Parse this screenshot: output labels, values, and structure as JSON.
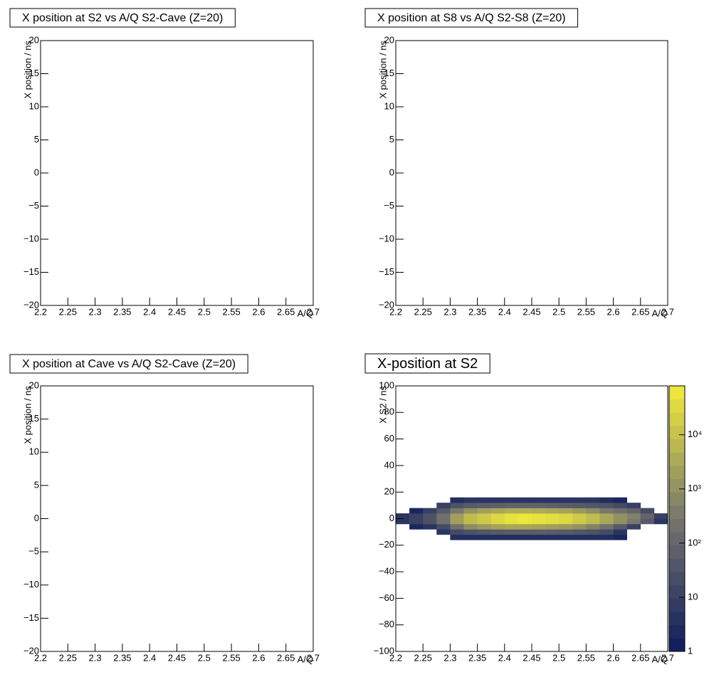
{
  "chart_data": [
    {
      "type": "hist2d",
      "title": "X position at S2 vs A/Q S2-Cave (Z=20)",
      "x_label": "A/Q",
      "y_label": "X position / ns",
      "xlim": [
        2.2,
        2.7
      ],
      "xticks": [
        2.2,
        2.25,
        2.3,
        2.35,
        2.4,
        2.45,
        2.5,
        2.55,
        2.6,
        2.65,
        2.7
      ],
      "ylim": [
        -20,
        20
      ],
      "yticks": [
        {
          "value": -20,
          "label": "−20"
        },
        {
          "value": -15,
          "label": "−15"
        },
        {
          "value": -10,
          "label": "−10"
        },
        {
          "value": -5,
          "label": "−5"
        },
        0,
        5,
        10,
        15,
        20
      ]
    },
    {
      "type": "hist2d",
      "title": "X position at S8 vs A/Q S2-S8 (Z=20)",
      "x_label": "A/Q",
      "y_label": "X position / ns",
      "xlim": [
        2.2,
        2.7
      ],
      "xticks": [
        2.2,
        2.25,
        2.3,
        2.35,
        2.4,
        2.45,
        2.5,
        2.55,
        2.6,
        2.65,
        2.7
      ],
      "ylim": [
        -20,
        20
      ],
      "yticks": [
        {
          "value": -20,
          "label": "−20"
        },
        {
          "value": -15,
          "label": "−15"
        },
        {
          "value": -10,
          "label": "−10"
        },
        {
          "value": -5,
          "label": "−5"
        },
        0,
        5,
        10,
        15,
        20
      ]
    },
    {
      "type": "hist2d",
      "title": "X position at Cave vs A/Q S2-Cave (Z=20)",
      "x_label": "A/Q",
      "y_label": "X position / ns",
      "xlim": [
        2.2,
        2.7
      ],
      "xticks": [
        2.2,
        2.25,
        2.3,
        2.35,
        2.4,
        2.45,
        2.5,
        2.55,
        2.6,
        2.65,
        2.7
      ],
      "ylim": [
        -20,
        20
      ],
      "yticks": [
        {
          "value": -20,
          "label": "−20"
        },
        {
          "value": -15,
          "label": "−15"
        },
        {
          "value": -10,
          "label": "−10"
        },
        {
          "value": -5,
          "label": "−5"
        },
        0,
        5,
        10,
        15,
        20
      ]
    },
    {
      "type": "hist2d",
      "title": "X-position at S2",
      "x_label": "A/Q",
      "y_label": "X S2 / ns",
      "xlim": [
        2.2,
        2.7
      ],
      "xticks": [
        2.2,
        2.25,
        2.3,
        2.35,
        2.4,
        2.45,
        2.5,
        2.55,
        2.6,
        2.65,
        2.7
      ],
      "ylim": [
        -100,
        100
      ],
      "yticks": [
        {
          "value": -100,
          "label": "−100"
        },
        {
          "value": -80,
          "label": "−80"
        },
        {
          "value": -60,
          "label": "−60"
        },
        {
          "value": -40,
          "label": "−40"
        },
        {
          "value": -20,
          "label": "−20"
        },
        0,
        20,
        40,
        60,
        80,
        100
      ],
      "log_z": true,
      "zlim": [
        1,
        80000
      ],
      "zticks": [
        1,
        10,
        {
          "value": 100,
          "label": "10²"
        },
        {
          "value": 1000,
          "label": "10³"
        },
        {
          "value": 10000,
          "label": "10⁴"
        }
      ],
      "palette": [
        "#0d1b5c",
        "#77766e",
        "#f2ec3a"
      ],
      "x_bins": [
        2.2,
        2.225,
        2.25,
        2.275,
        2.3,
        2.325,
        2.35,
        2.375,
        2.4,
        2.425,
        2.45,
        2.475,
        2.5,
        2.525,
        2.55,
        2.575,
        2.6,
        2.625,
        2.65,
        2.675,
        2.7
      ],
      "y_bins": [
        -16,
        -12,
        -8,
        -4,
        0,
        4,
        8,
        12,
        16
      ],
      "counts": [
        [
          0,
          0,
          0,
          0,
          3,
          3,
          3,
          3,
          3,
          3,
          3,
          3,
          3,
          3,
          3,
          3,
          2,
          0,
          0,
          0
        ],
        [
          0,
          0,
          0,
          5,
          20,
          30,
          40,
          50,
          60,
          60,
          60,
          60,
          50,
          40,
          30,
          20,
          5,
          0,
          0,
          0
        ],
        [
          0,
          2,
          5,
          20,
          200,
          800,
          1500,
          2500,
          3000,
          3000,
          2500,
          2000,
          1500,
          1000,
          500,
          200,
          50,
          10,
          0,
          0
        ],
        [
          5,
          10,
          30,
          200,
          2000,
          8000,
          15000,
          30000,
          50000,
          60000,
          50000,
          40000,
          30000,
          15000,
          8000,
          3000,
          1000,
          300,
          50,
          5
        ],
        [
          5,
          10,
          30,
          200,
          2000,
          8000,
          15000,
          30000,
          50000,
          60000,
          50000,
          40000,
          30000,
          15000,
          8000,
          3000,
          1000,
          500,
          100,
          10
        ],
        [
          0,
          2,
          10,
          50,
          300,
          1000,
          2000,
          3000,
          4000,
          4000,
          3500,
          3000,
          2500,
          1500,
          800,
          300,
          200,
          100,
          20,
          0
        ],
        [
          0,
          0,
          0,
          10,
          30,
          50,
          60,
          70,
          80,
          80,
          80,
          70,
          60,
          50,
          40,
          30,
          20,
          10,
          0,
          0
        ],
        [
          0,
          0,
          0,
          0,
          3,
          5,
          5,
          5,
          5,
          5,
          5,
          5,
          5,
          5,
          5,
          3,
          2,
          0,
          0,
          0
        ]
      ]
    }
  ]
}
